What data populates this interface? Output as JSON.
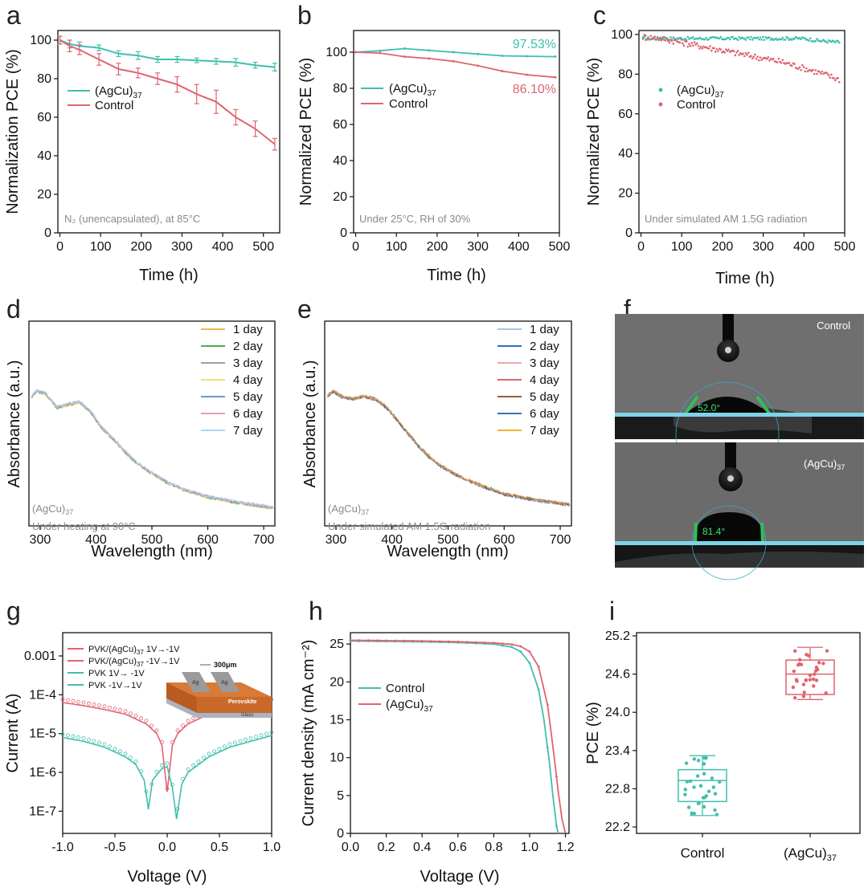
{
  "colors": {
    "teal": "#3fbfae",
    "red": "#e0646e",
    "photo_bg": "#6d6d6d",
    "baseline": "#7fd3e6"
  },
  "chart_data": [
    {
      "id": "a",
      "label": "a",
      "type": "line",
      "xlabel": "Time (h)",
      "ylabel": "Normalization PCE (%)",
      "xlim": [
        -5,
        540
      ],
      "ylim": [
        0,
        105
      ],
      "xticks": [
        0,
        100,
        200,
        300,
        400,
        500
      ],
      "yticks": [
        0,
        20,
        40,
        60,
        80,
        100
      ],
      "note": "N₂ (unencapsulated), at 85°C",
      "series": [
        {
          "name": "(AgCu)",
          "name_sub": "37",
          "color": "#3fbfae",
          "x": [
            0,
            24,
            48,
            96,
            144,
            192,
            240,
            288,
            336,
            384,
            432,
            480,
            528
          ],
          "y": [
            100,
            98,
            97,
            96,
            93,
            92,
            90,
            90,
            89.5,
            89,
            88.5,
            87,
            86
          ],
          "err": [
            2,
            2,
            2,
            1.5,
            1.5,
            2,
            1.5,
            1.5,
            1.2,
            1.5,
            2,
            1.5,
            2
          ]
        },
        {
          "name": "Control",
          "name_sub": "",
          "color": "#e0646e",
          "x": [
            0,
            24,
            48,
            96,
            144,
            192,
            240,
            288,
            336,
            384,
            432,
            480,
            528
          ],
          "y": [
            100,
            97,
            95,
            90,
            85,
            83,
            80,
            77,
            72,
            68,
            60,
            54,
            46
          ],
          "err": [
            2,
            3,
            2.5,
            3,
            3,
            2.5,
            3,
            4,
            5,
            6,
            4,
            4,
            3
          ]
        }
      ],
      "legend": {
        "position": "middle-left",
        "items": [
          "(AgCu)37",
          "Control"
        ]
      }
    },
    {
      "id": "b",
      "label": "b",
      "type": "line",
      "xlabel": "Time (h)",
      "ylabel": "Normalized PCE (%)",
      "xlim": [
        -5,
        500
      ],
      "ylim": [
        0,
        112
      ],
      "xticks": [
        0,
        100,
        200,
        300,
        400,
        500
      ],
      "yticks": [
        0,
        20,
        40,
        60,
        80,
        100
      ],
      "note": "Under 25°C, RH of 30%",
      "annotations": [
        {
          "text": "97.53%",
          "color": "#3fbfae"
        },
        {
          "text": "86.10%",
          "color": "#e0646e"
        }
      ],
      "series": [
        {
          "name": "(AgCu)",
          "name_sub": "37",
          "color": "#3fbfae",
          "x": [
            0,
            60,
            120,
            180,
            240,
            300,
            360,
            420,
            490
          ],
          "y": [
            100,
            100.8,
            102,
            101,
            100,
            99,
            98,
            97.8,
            97.53
          ]
        },
        {
          "name": "Control",
          "name_sub": "",
          "color": "#e0646e",
          "x": [
            0,
            60,
            120,
            180,
            240,
            300,
            360,
            420,
            490
          ],
          "y": [
            100,
            99.5,
            97.5,
            96.5,
            95,
            92.5,
            89.5,
            87.5,
            86.1
          ]
        }
      ],
      "legend": {
        "position": "middle-left",
        "items": [
          "(AgCu)37",
          "Control"
        ]
      }
    },
    {
      "id": "c",
      "label": "c",
      "type": "scatter",
      "xlabel": "Time (h)",
      "ylabel": "Normalized PCE (%)",
      "xlim": [
        -5,
        500
      ],
      "ylim": [
        0,
        102
      ],
      "xticks": [
        0,
        100,
        200,
        300,
        400,
        500
      ],
      "yticks": [
        0,
        20,
        40,
        60,
        80,
        100
      ],
      "note": "Under simulated AM 1.5G radiation",
      "series": [
        {
          "name": "(AgCu)",
          "name_sub": "37",
          "color": "#3fbfae",
          "trend_x": [
            0,
            100,
            200,
            300,
            400,
            430,
            490
          ],
          "trend_y": [
            98,
            98,
            98,
            98,
            98,
            97,
            96
          ]
        },
        {
          "name": "Control",
          "name_sub": "",
          "color": "#e0646e",
          "trend_x": [
            0,
            50,
            100,
            150,
            200,
            250,
            300,
            350,
            400,
            450,
            490
          ],
          "trend_y": [
            99,
            98,
            96,
            94,
            92,
            90,
            88,
            86,
            83,
            80,
            77
          ]
        }
      ],
      "legend": {
        "position": "middle-left",
        "items": [
          "(AgCu)37",
          "Control"
        ]
      }
    },
    {
      "id": "d",
      "label": "d",
      "type": "line",
      "xlabel": "Wavelength (nm)",
      "ylabel": "Absorbance (a.u.)",
      "xlim": [
        280,
        720
      ],
      "xticks": [
        300,
        400,
        500,
        600,
        700
      ],
      "note_main": "(AgCu)",
      "note_sub": "37",
      "note": "Under heating at 90°C",
      "legend_items": [
        {
          "name": "1 day",
          "color": "#f2b84b"
        },
        {
          "name": "2 day",
          "color": "#4caf50"
        },
        {
          "name": "3 day",
          "color": "#9e9e9e"
        },
        {
          "name": "4 day",
          "color": "#ece57a"
        },
        {
          "name": "5 day",
          "color": "#6c95d8"
        },
        {
          "name": "6 day",
          "color": "#e39ac1"
        },
        {
          "name": "7 day",
          "color": "#a8d8f0"
        }
      ],
      "spectrum_x": [
        285,
        295,
        310,
        330,
        350,
        370,
        390,
        410,
        430,
        450,
        470,
        490,
        510,
        530,
        560,
        600,
        650,
        700,
        718
      ],
      "spectrum_y": [
        0.86,
        0.9,
        0.88,
        0.78,
        0.8,
        0.82,
        0.75,
        0.63,
        0.55,
        0.46,
        0.38,
        0.32,
        0.27,
        0.22,
        0.17,
        0.12,
        0.08,
        0.05,
        0.04
      ]
    },
    {
      "id": "e",
      "label": "e",
      "type": "line",
      "xlabel": "Wavelength (nm)",
      "ylabel": "Absorbance (a.u.)",
      "xlim": [
        280,
        720
      ],
      "xticks": [
        300,
        400,
        500,
        600,
        700
      ],
      "note_main": "(AgCu)",
      "note_sub": "37",
      "note": "Under simulated AM 1.5G radiation",
      "legend_items": [
        {
          "name": "1 day",
          "color": "#a8c4e8"
        },
        {
          "name": "2 day",
          "color": "#2f6cc4"
        },
        {
          "name": "3 day",
          "color": "#f0a6a6"
        },
        {
          "name": "4 day",
          "color": "#e0646e"
        },
        {
          "name": "5 day",
          "color": "#9c5b3a"
        },
        {
          "name": "6 day",
          "color": "#3a6fb6"
        },
        {
          "name": "7 day",
          "color": "#f2b233"
        }
      ],
      "spectrum_x": [
        285,
        295,
        310,
        330,
        350,
        370,
        390,
        410,
        430,
        450,
        470,
        490,
        510,
        530,
        560,
        600,
        650,
        700,
        718
      ],
      "spectrum_y": [
        0.86,
        0.9,
        0.86,
        0.84,
        0.86,
        0.84,
        0.78,
        0.68,
        0.58,
        0.48,
        0.4,
        0.34,
        0.29,
        0.25,
        0.2,
        0.14,
        0.1,
        0.07,
        0.06
      ]
    },
    {
      "id": "g",
      "label": "g",
      "type": "line",
      "yscale": "log",
      "xlabel": "Voltage (V)",
      "ylabel": "Current (A)",
      "xlim": [
        -1,
        1
      ],
      "xticks": [
        "-1.0",
        "-0.5",
        "0.0",
        "0.5",
        "1.0"
      ],
      "yticks": [
        "1E-7",
        "1E-6",
        "1E-5",
        "1E-4",
        "0.001"
      ],
      "inset": {
        "scale_label": "300μm",
        "layers": [
          "Perovskite",
          "Glass"
        ],
        "electrode": "Ag"
      },
      "legend": [
        {
          "main": "PVK/(AgCu)",
          "sub": "37",
          "tail": " 1V→-1V",
          "color": "#e0646e"
        },
        {
          "main": "PVK/(AgCu)",
          "sub": "37",
          "tail": " -1V→1V",
          "color": "#e0646e"
        },
        {
          "main": "PVK 1V→ -1V",
          "sub": "",
          "tail": "",
          "color": "#3fbfae"
        },
        {
          "main": "PVK -1V→1V",
          "sub": "",
          "tail": "",
          "color": "#3fbfae"
        }
      ],
      "series": [
        {
          "name": "PVK/(AgCu)37",
          "color": "#e0646e",
          "v": [
            -1,
            -0.8,
            -0.6,
            -0.4,
            -0.2,
            -0.1,
            -0.05,
            0,
            0.05,
            0.1,
            0.2,
            0.4,
            0.6,
            0.8,
            1
          ],
          "logI": [
            -4.2,
            -4.28,
            -4.38,
            -4.5,
            -4.75,
            -5.0,
            -5.3,
            -6.5,
            -5.3,
            -5.0,
            -4.75,
            -4.5,
            -4.38,
            -4.28,
            -4.2
          ]
        },
        {
          "name": "PVK",
          "color": "#3fbfae",
          "v": [
            -1,
            -0.8,
            -0.6,
            -0.4,
            -0.3,
            -0.22,
            -0.18,
            -0.14,
            -0.05,
            0,
            0.05,
            0.09,
            0.14,
            0.2,
            0.4,
            0.6,
            0.8,
            1
          ],
          "logI": [
            -5.1,
            -5.2,
            -5.35,
            -5.6,
            -5.8,
            -6.2,
            -6.95,
            -6.2,
            -5.9,
            -5.85,
            -6.4,
            -7.2,
            -6.3,
            -6.0,
            -5.6,
            -5.35,
            -5.2,
            -5.05
          ]
        }
      ]
    },
    {
      "id": "h",
      "label": "h",
      "type": "line",
      "xlabel": "Voltage (V)",
      "ylabel": "Current density (mA cm⁻²)",
      "xlim": [
        0,
        1.22
      ],
      "ylim": [
        0,
        26.5
      ],
      "xticks": [
        "0.0",
        "0.2",
        "0.4",
        "0.6",
        "0.8",
        "1.0",
        "1.2"
      ],
      "yticks": [
        0,
        5,
        10,
        15,
        20,
        25
      ],
      "series": [
        {
          "name": "Control",
          "name_sub": "",
          "color": "#3fbfae",
          "x": [
            0,
            0.2,
            0.4,
            0.6,
            0.8,
            0.9,
            0.95,
            1.0,
            1.05,
            1.08,
            1.11,
            1.13,
            1.15,
            1.16
          ],
          "y": [
            25.4,
            25.35,
            25.3,
            25.2,
            25.0,
            24.6,
            24.0,
            22.5,
            19.0,
            15.0,
            9.5,
            5.0,
            1.0,
            0
          ]
        },
        {
          "name": "(AgCu)",
          "name_sub": "37",
          "color": "#e0646e",
          "x": [
            0,
            0.2,
            0.4,
            0.6,
            0.8,
            0.9,
            0.95,
            1.0,
            1.05,
            1.1,
            1.13,
            1.16,
            1.18,
            1.2
          ],
          "y": [
            25.5,
            25.45,
            25.4,
            25.3,
            25.15,
            24.95,
            24.7,
            24.0,
            22.0,
            17.0,
            11.5,
            5.5,
            2.0,
            0
          ]
        }
      ]
    },
    {
      "id": "i",
      "label": "i",
      "type": "box",
      "xlabel": "",
      "ylabel": "PCE (%)",
      "ylim": [
        22.1,
        25.25
      ],
      "yticks": [
        "22.2",
        "22.8",
        "23.4",
        "24.0",
        "24.6",
        "25.2"
      ],
      "categories": [
        "Control",
        "(AgCu)37"
      ],
      "series": [
        {
          "name": "Control",
          "color": "#3fbfae",
          "min": 22.38,
          "q1": 22.6,
          "median": 22.93,
          "q3": 23.1,
          "max": 23.32
        },
        {
          "name": "(AgCu)",
          "name_sub": "37",
          "color": "#e0646e",
          "min": 24.2,
          "q1": 24.28,
          "median": 24.6,
          "q3": 24.82,
          "max": 25.02
        }
      ]
    }
  ],
  "photo_f": {
    "label": "f",
    "top_label": "Control",
    "top_angle": "52.0°",
    "bottom_main": "(AgCu)",
    "bottom_sub": "37",
    "bottom_angle": "81.4°"
  }
}
